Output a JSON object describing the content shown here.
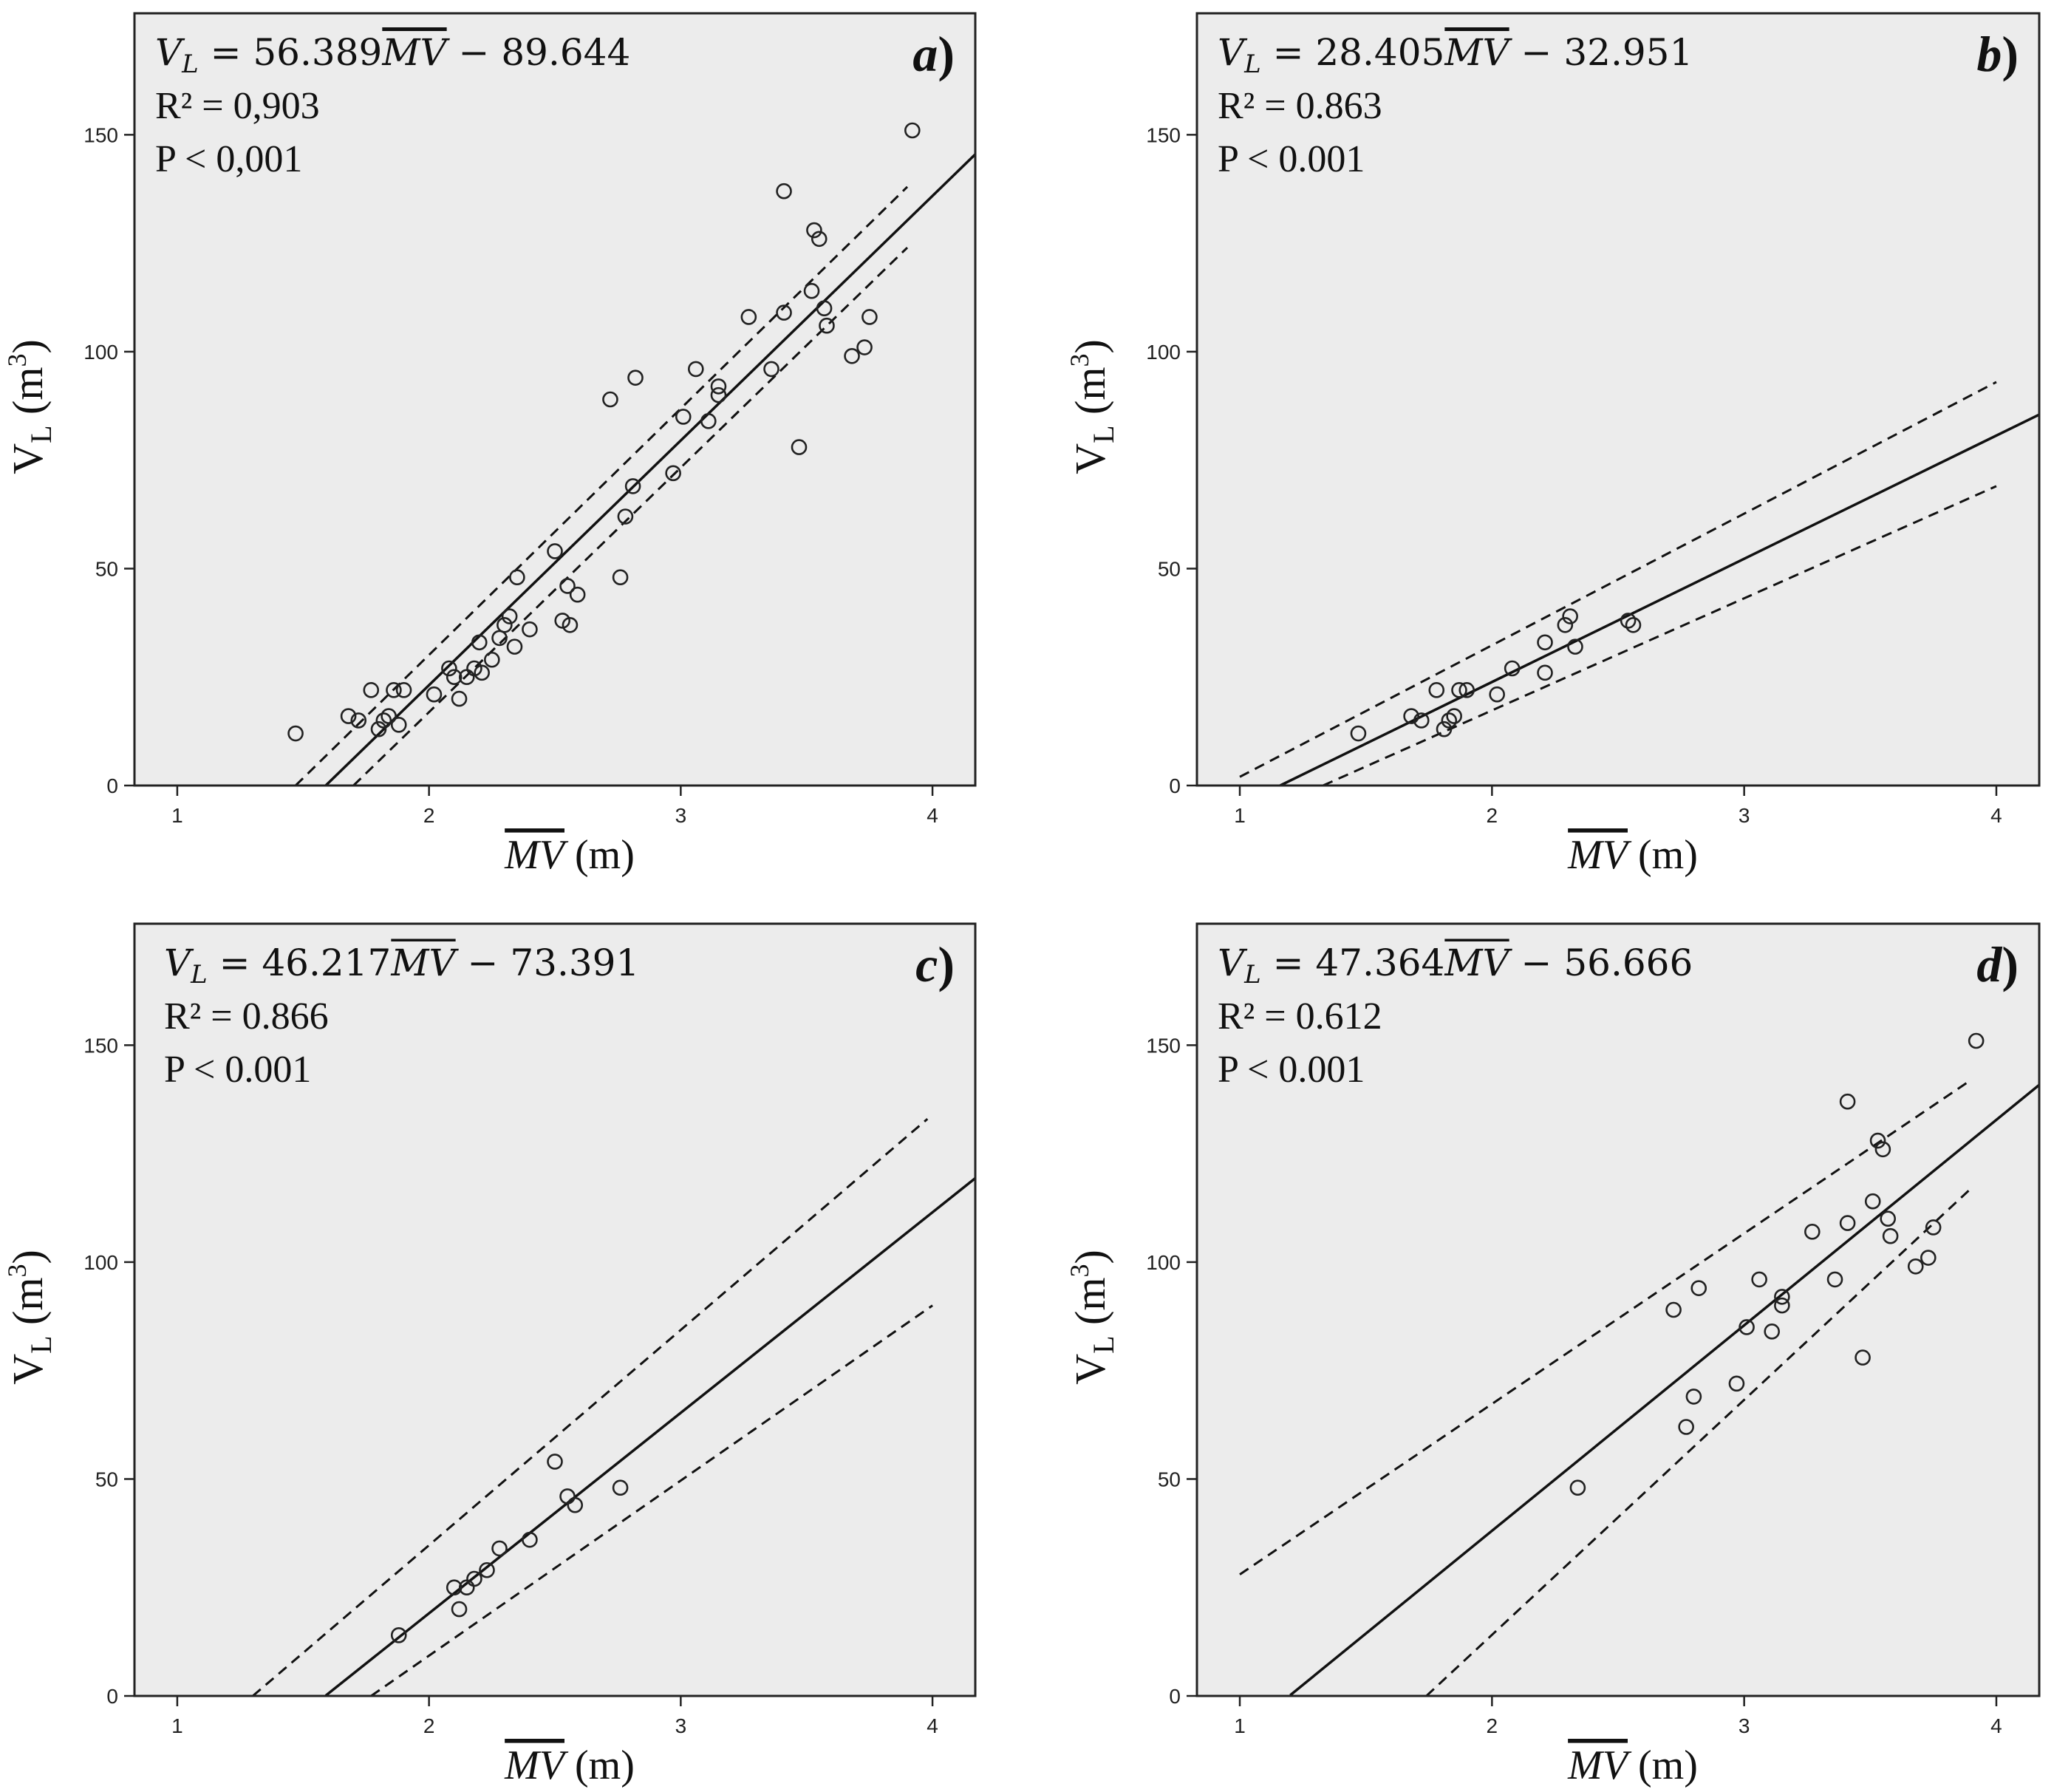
{
  "chart_data": [
    {
      "type": "scatter",
      "panel_letter": "a",
      "equation": {
        "lhs": "V",
        "lhs_sub": "L",
        "rhs_prefix": " = 56.389",
        "mv": "MV",
        "rhs_suffix": " − 89.644"
      },
      "r2": "R² = 0,903",
      "p": "P < 0,001",
      "xlabel": {
        "mv": "MV",
        "unit": " (m)"
      },
      "ylabel": {
        "main": "V",
        "sub": "L",
        "unit": " (m",
        "sup": "3",
        "close": ")"
      },
      "xlim": [
        0.83,
        4.17
      ],
      "ylim": [
        0,
        178
      ],
      "xticks": [
        "1",
        "2",
        "3",
        "4"
      ],
      "yticks": [
        "0",
        "50",
        "100",
        "150"
      ],
      "fit": {
        "slope": 56.389,
        "intercept": -89.644,
        "x_range": [
          1.59,
          4.17
        ]
      },
      "ci_upper": [
        [
          1.47,
          0
        ],
        [
          3.9,
          138
        ]
      ],
      "ci_lower": [
        [
          1.7,
          0
        ],
        [
          3.9,
          124
        ]
      ],
      "points": [
        [
          1.47,
          12
        ],
        [
          1.68,
          16
        ],
        [
          1.72,
          15
        ],
        [
          1.77,
          22
        ],
        [
          1.8,
          13
        ],
        [
          1.82,
          15
        ],
        [
          1.84,
          16
        ],
        [
          1.86,
          22
        ],
        [
          1.88,
          14
        ],
        [
          1.9,
          22
        ],
        [
          2.02,
          21
        ],
        [
          2.08,
          27
        ],
        [
          2.1,
          25
        ],
        [
          2.12,
          20
        ],
        [
          2.15,
          25
        ],
        [
          2.18,
          27
        ],
        [
          2.2,
          33
        ],
        [
          2.21,
          26
        ],
        [
          2.25,
          29
        ],
        [
          2.28,
          34
        ],
        [
          2.3,
          37
        ],
        [
          2.32,
          39
        ],
        [
          2.34,
          32
        ],
        [
          2.35,
          48
        ],
        [
          2.4,
          36
        ],
        [
          2.5,
          54
        ],
        [
          2.53,
          38
        ],
        [
          2.55,
          46
        ],
        [
          2.56,
          37
        ],
        [
          2.59,
          44
        ],
        [
          2.72,
          89
        ],
        [
          2.76,
          48
        ],
        [
          2.78,
          62
        ],
        [
          2.81,
          69
        ],
        [
          2.82,
          94
        ],
        [
          2.97,
          72
        ],
        [
          3.01,
          85
        ],
        [
          3.06,
          96
        ],
        [
          3.11,
          84
        ],
        [
          3.15,
          92
        ],
        [
          3.15,
          90
        ],
        [
          3.27,
          108
        ],
        [
          3.36,
          96
        ],
        [
          3.41,
          137
        ],
        [
          3.41,
          109
        ],
        [
          3.47,
          78
        ],
        [
          3.52,
          114
        ],
        [
          3.53,
          128
        ],
        [
          3.55,
          126
        ],
        [
          3.57,
          110
        ],
        [
          3.58,
          106
        ],
        [
          3.68,
          99
        ],
        [
          3.73,
          101
        ],
        [
          3.75,
          108
        ],
        [
          3.92,
          151
        ]
      ]
    },
    {
      "type": "scatter",
      "panel_letter": "b",
      "equation": {
        "lhs": "V",
        "lhs_sub": "L",
        "rhs_prefix": " = 28.405",
        "mv": "MV",
        "rhs_suffix": " − 32.951"
      },
      "r2": "R² = 0.863",
      "p": "P < 0.001",
      "xlabel": {
        "mv": "MV",
        "unit": " (m)"
      },
      "ylabel": {
        "main": "V",
        "sub": "L",
        "unit": " (m",
        "sup": "3",
        "close": ")"
      },
      "xlim": [
        0.83,
        4.17
      ],
      "ylim": [
        0,
        178
      ],
      "xticks": [
        "1",
        "2",
        "3",
        "4"
      ],
      "yticks": [
        "0",
        "50",
        "100",
        "150"
      ],
      "fit": {
        "slope": 28.405,
        "intercept": -32.951,
        "x_range": [
          1.16,
          4.17
        ]
      },
      "ci_upper": [
        [
          1.0,
          2
        ],
        [
          4.0,
          93
        ]
      ],
      "ci_lower": [
        [
          1.33,
          0
        ],
        [
          4.0,
          69
        ]
      ],
      "points": [
        [
          1.47,
          12
        ],
        [
          1.68,
          16
        ],
        [
          1.72,
          15
        ],
        [
          1.78,
          22
        ],
        [
          1.81,
          13
        ],
        [
          1.83,
          15
        ],
        [
          1.85,
          16
        ],
        [
          1.87,
          22
        ],
        [
          1.9,
          22
        ],
        [
          2.02,
          21
        ],
        [
          2.08,
          27
        ],
        [
          2.21,
          26
        ],
        [
          2.21,
          33
        ],
        [
          2.29,
          37
        ],
        [
          2.31,
          39
        ],
        [
          2.33,
          32
        ],
        [
          2.54,
          38
        ],
        [
          2.56,
          37
        ]
      ]
    },
    {
      "type": "scatter",
      "panel_letter": "c",
      "equation": {
        "lhs": "V",
        "lhs_sub": "L",
        "rhs_prefix": " = 46.217",
        "mv": "MV",
        "rhs_suffix": " − 73.391"
      },
      "r2": "R² = 0.866",
      "p": "P < 0.001",
      "xlabel": {
        "mv": "MV",
        "unit": " (m)"
      },
      "ylabel": {
        "main": "V",
        "sub": "L",
        "unit": " (m",
        "sup": "3",
        "close": ")"
      },
      "xlim": [
        0.83,
        4.17
      ],
      "ylim": [
        0,
        178
      ],
      "xticks": [
        "1",
        "2",
        "3",
        "4"
      ],
      "yticks": [
        "0",
        "50",
        "100",
        "150"
      ],
      "fit": {
        "slope": 46.217,
        "intercept": -73.391,
        "x_range": [
          1.59,
          4.17
        ]
      },
      "ci_upper": [
        [
          1.3,
          0
        ],
        [
          3.98,
          133
        ]
      ],
      "ci_lower": [
        [
          1.77,
          0
        ],
        [
          4.0,
          90
        ]
      ],
      "points": [
        [
          1.88,
          14
        ],
        [
          2.1,
          25
        ],
        [
          2.12,
          20
        ],
        [
          2.15,
          25
        ],
        [
          2.18,
          27
        ],
        [
          2.23,
          29
        ],
        [
          2.28,
          34
        ],
        [
          2.4,
          36
        ],
        [
          2.5,
          54
        ],
        [
          2.55,
          46
        ],
        [
          2.58,
          44
        ],
        [
          2.76,
          48
        ]
      ]
    },
    {
      "type": "scatter",
      "panel_letter": "d",
      "equation": {
        "lhs": "V",
        "lhs_sub": "L",
        "rhs_prefix": " = 47.364",
        "mv": "MV",
        "rhs_suffix": " − 56.666"
      },
      "r2": "R² = 0.612",
      "p": "P < 0.001",
      "xlabel": {
        "mv": "MV",
        "unit": " (m)"
      },
      "ylabel": {
        "main": "V",
        "sub": "L",
        "unit": " (m",
        "sup": "3",
        "close": ")"
      },
      "xlim": [
        0.83,
        4.17
      ],
      "ylim": [
        0,
        178
      ],
      "xticks": [
        "1",
        "2",
        "3",
        "4"
      ],
      "yticks": [
        "0",
        "50",
        "100",
        "150"
      ],
      "fit": {
        "slope": 47.364,
        "intercept": -56.666,
        "x_range": [
          1.2,
          4.17
        ]
      },
      "ci_upper": [
        [
          1.0,
          28
        ],
        [
          3.9,
          142
        ]
      ],
      "ci_lower": [
        [
          1.74,
          0
        ],
        [
          3.9,
          117
        ]
      ],
      "points": [
        [
          2.34,
          48
        ],
        [
          2.72,
          89
        ],
        [
          2.77,
          62
        ],
        [
          2.8,
          69
        ],
        [
          2.82,
          94
        ],
        [
          2.97,
          72
        ],
        [
          3.01,
          85
        ],
        [
          3.06,
          96
        ],
        [
          3.11,
          84
        ],
        [
          3.15,
          92
        ],
        [
          3.15,
          90
        ],
        [
          3.27,
          107
        ],
        [
          3.36,
          96
        ],
        [
          3.41,
          137
        ],
        [
          3.41,
          109
        ],
        [
          3.47,
          78
        ],
        [
          3.51,
          114
        ],
        [
          3.53,
          128
        ],
        [
          3.55,
          126
        ],
        [
          3.57,
          110
        ],
        [
          3.58,
          106
        ],
        [
          3.68,
          99
        ],
        [
          3.73,
          101
        ],
        [
          3.75,
          108
        ],
        [
          3.92,
          151
        ]
      ]
    }
  ]
}
